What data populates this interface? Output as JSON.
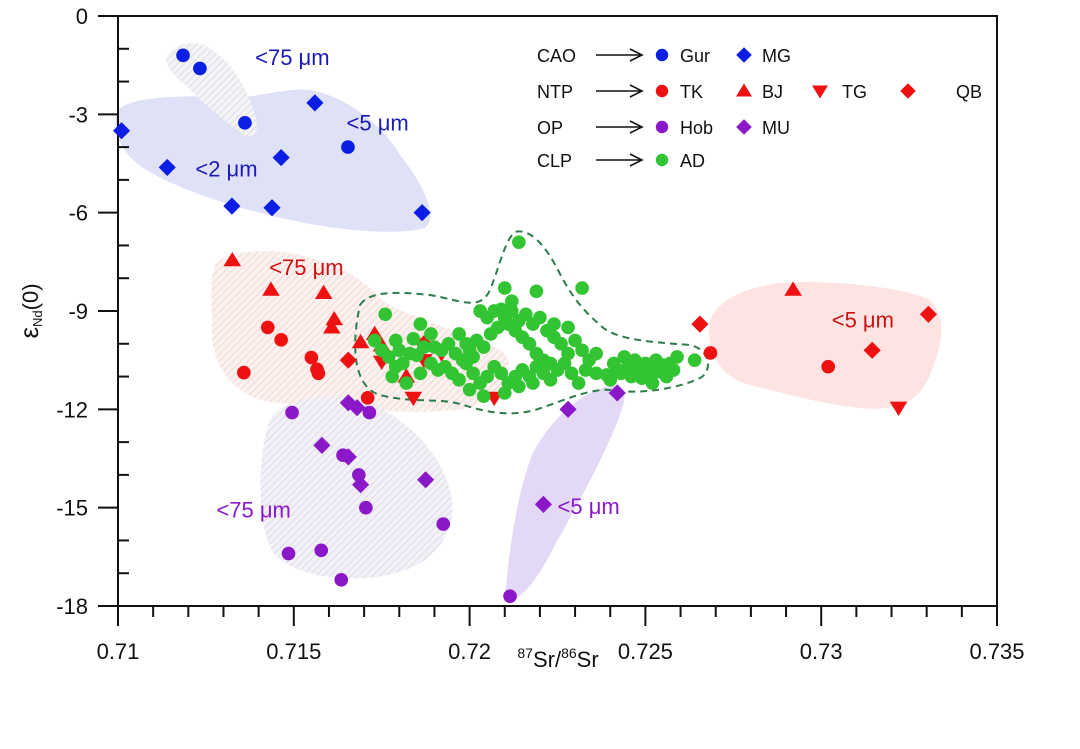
{
  "chart_data": {
    "type": "scatter",
    "title": "",
    "xlabel": {
      "sup1": "87",
      "t1": "Sr/",
      "sup2": "86",
      "t2": "Sr"
    },
    "ylabel": {
      "main": "ε",
      "sub": "Nd",
      "tail": "(0)"
    },
    "xlim": [
      0.71,
      0.735
    ],
    "ylim": [
      -18,
      0
    ],
    "xticks": [
      0.71,
      0.715,
      0.72,
      0.725,
      0.73,
      0.735
    ],
    "xtick_labels": [
      "0.71",
      "0.715",
      "0.72",
      "0.725",
      "0.73",
      "0.735"
    ],
    "x_minor_step": 0.001,
    "yticks": [
      0,
      -3,
      -6,
      -9,
      -12,
      -15,
      -18
    ],
    "ytick_labels": [
      "0",
      "-3",
      "-6",
      "-9",
      "-12",
      "-15",
      "-18"
    ],
    "y_minor_step": 1,
    "grid": false,
    "legend": {
      "placement": "top-right",
      "rows": [
        {
          "group": "CAO",
          "entries": [
            {
              "name": "Gur",
              "marker": "circle",
              "color": "#0a1ee6"
            },
            {
              "name": "MG",
              "marker": "diamond",
              "color": "#0a1ee6"
            }
          ]
        },
        {
          "group": "NTP",
          "entries": [
            {
              "name": "TK",
              "marker": "circle",
              "color": "#ee1111"
            },
            {
              "name": "BJ",
              "marker": "triangle-up",
              "color": "#ee1111"
            },
            {
              "name": "TG",
              "marker": "triangle-down",
              "color": "#ee1111"
            },
            {
              "name": "QB",
              "marker": "diamond",
              "color": "#ee1111"
            }
          ]
        },
        {
          "group": "OP",
          "entries": [
            {
              "name": "Hob",
              "marker": "circle",
              "color": "#8a18c8"
            },
            {
              "name": "MU",
              "marker": "diamond",
              "color": "#8a18c8"
            }
          ]
        },
        {
          "group": "CLP",
          "entries": [
            {
              "name": "AD",
              "marker": "circle",
              "color": "#33c433"
            }
          ]
        }
      ]
    },
    "region_labels": [
      {
        "text": "<75 μm",
        "x": 0.7139,
        "y": -1.5,
        "color": "#1a1ab8"
      },
      {
        "text": "<5 μm",
        "x": 0.7165,
        "y": -3.5,
        "color": "#1a1ab8"
      },
      {
        "text": "<2 μm",
        "x": 0.7122,
        "y": -4.9,
        "color": "#1a1ab8"
      },
      {
        "text": "<75 μm",
        "x": 0.7143,
        "y": -7.9,
        "color": "#cc1111"
      },
      {
        "text": "<5 μm",
        "x": 0.7303,
        "y": -9.5,
        "color": "#cc1111"
      },
      {
        "text": "<75 μm",
        "x": 0.7128,
        "y": -15.3,
        "color": "#8a18c8"
      },
      {
        "text": "<5 μm",
        "x": 0.7225,
        "y": -15.2,
        "color": "#8a18c8"
      }
    ],
    "series": [
      {
        "name": "Gur",
        "group": "CAO",
        "marker": "circle",
        "color": "#0a1ee6",
        "points": [
          [
            0.71185,
            -1.2
          ],
          [
            0.71233,
            -1.6
          ],
          [
            0.71361,
            -3.26
          ],
          [
            0.71654,
            -4.0
          ]
        ]
      },
      {
        "name": "MG",
        "group": "CAO",
        "marker": "diamond",
        "color": "#0a1ee6",
        "points": [
          [
            0.7101,
            -3.5
          ],
          [
            0.7114,
            -4.62
          ],
          [
            0.71324,
            -5.8
          ],
          [
            0.71438,
            -5.85
          ],
          [
            0.71464,
            -4.32
          ],
          [
            0.7156,
            -2.65
          ],
          [
            0.71865,
            -6.0
          ]
        ]
      },
      {
        "name": "TK",
        "group": "NTP",
        "marker": "circle",
        "color": "#ee1111",
        "points": [
          [
            0.71426,
            -9.5
          ],
          [
            0.71464,
            -9.88
          ],
          [
            0.71358,
            -10.88
          ],
          [
            0.7155,
            -10.42
          ],
          [
            0.71566,
            -10.78
          ],
          [
            0.7157,
            -10.9
          ],
          [
            0.7171,
            -11.65
          ],
          [
            0.72685,
            -10.28
          ],
          [
            0.7302,
            -10.7
          ]
        ]
      },
      {
        "name": "BJ",
        "group": "NTP",
        "marker": "triangle-up",
        "color": "#ee1111",
        "points": [
          [
            0.71325,
            -7.45
          ],
          [
            0.71435,
            -8.35
          ],
          [
            0.71585,
            -8.45
          ],
          [
            0.71615,
            -9.25
          ],
          [
            0.71608,
            -9.5
          ],
          [
            0.7169,
            -9.95
          ],
          [
            0.7173,
            -9.7
          ],
          [
            0.7175,
            -10.05
          ],
          [
            0.7182,
            -11.0
          ],
          [
            0.7292,
            -8.35
          ]
        ]
      },
      {
        "name": "TG",
        "group": "NTP",
        "marker": "triangle-down",
        "color": "#ee1111",
        "points": [
          [
            0.7175,
            -10.55
          ],
          [
            0.7184,
            -11.65
          ],
          [
            0.7187,
            -10.5
          ],
          [
            0.7192,
            -10.3
          ],
          [
            0.7207,
            -11.65
          ],
          [
            0.7322,
            -11.95
          ]
        ]
      },
      {
        "name": "QB",
        "group": "NTP",
        "marker": "diamond",
        "color": "#ee1111",
        "points": [
          [
            0.71655,
            -10.5
          ],
          [
            0.7187,
            -10.0
          ],
          [
            0.72655,
            -9.4
          ],
          [
            0.73145,
            -10.2
          ],
          [
            0.73305,
            -9.1
          ]
        ]
      },
      {
        "name": "Hob",
        "group": "OP",
        "marker": "circle",
        "color": "#8a18c8",
        "points": [
          [
            0.71495,
            -12.1
          ],
          [
            0.71715,
            -12.1
          ],
          [
            0.7164,
            -13.4
          ],
          [
            0.71685,
            -14.0
          ],
          [
            0.71705,
            -15.0
          ],
          [
            0.71485,
            -16.4
          ],
          [
            0.71578,
            -16.3
          ],
          [
            0.71635,
            -17.2
          ],
          [
            0.71925,
            -15.5
          ],
          [
            0.72115,
            -17.7
          ]
        ]
      },
      {
        "name": "MU",
        "group": "OP",
        "marker": "diamond",
        "color": "#8a18c8",
        "points": [
          [
            0.71655,
            -11.8
          ],
          [
            0.7168,
            -11.95
          ],
          [
            0.7158,
            -13.1
          ],
          [
            0.71655,
            -13.45
          ],
          [
            0.7169,
            -14.3
          ],
          [
            0.71875,
            -14.15
          ],
          [
            0.7221,
            -14.9
          ],
          [
            0.7228,
            -12.0
          ],
          [
            0.7242,
            -11.5
          ]
        ]
      },
      {
        "name": "AD",
        "group": "CLP",
        "marker": "circle",
        "color": "#33c433",
        "points": [
          [
            0.7214,
            -6.9
          ],
          [
            0.721,
            -8.3
          ],
          [
            0.7219,
            -8.4
          ],
          [
            0.7212,
            -8.7
          ],
          [
            0.7232,
            -8.3
          ],
          [
            0.7228,
            -9.5
          ],
          [
            0.7224,
            -9.4
          ],
          [
            0.7176,
            -9.1
          ],
          [
            0.7186,
            -9.4
          ],
          [
            0.7189,
            -9.7
          ],
          [
            0.7179,
            -9.9
          ],
          [
            0.7184,
            -9.85
          ],
          [
            0.7187,
            -10.1
          ],
          [
            0.7192,
            -10.2
          ],
          [
            0.7173,
            -9.9
          ],
          [
            0.7175,
            -10.2
          ],
          [
            0.7177,
            -10.4
          ],
          [
            0.7179,
            -10.7
          ],
          [
            0.7181,
            -10.6
          ],
          [
            0.7183,
            -10.3
          ],
          [
            0.7186,
            -10.9
          ],
          [
            0.7189,
            -10.6
          ],
          [
            0.7191,
            -10.8
          ],
          [
            0.7193,
            -10.7
          ],
          [
            0.7195,
            -10.9
          ],
          [
            0.7197,
            -11.1
          ],
          [
            0.7199,
            -10.6
          ],
          [
            0.7201,
            -10.9
          ],
          [
            0.7203,
            -11.2
          ],
          [
            0.7205,
            -11.0
          ],
          [
            0.7207,
            -10.7
          ],
          [
            0.7209,
            -10.9
          ],
          [
            0.7211,
            -11.2
          ],
          [
            0.7213,
            -11.0
          ],
          [
            0.7215,
            -10.8
          ],
          [
            0.7217,
            -11.0
          ],
          [
            0.7219,
            -10.7
          ],
          [
            0.7221,
            -10.9
          ],
          [
            0.7223,
            -11.1
          ],
          [
            0.7225,
            -10.8
          ],
          [
            0.7227,
            -10.6
          ],
          [
            0.7229,
            -10.9
          ],
          [
            0.7231,
            -11.2
          ],
          [
            0.7233,
            -10.8
          ],
          [
            0.7196,
            -10.3
          ],
          [
            0.7198,
            -10.5
          ],
          [
            0.72,
            -10.2
          ],
          [
            0.7202,
            -9.9
          ],
          [
            0.7204,
            -10.1
          ],
          [
            0.7206,
            -9.7
          ],
          [
            0.7208,
            -9.5
          ],
          [
            0.721,
            -9.2
          ],
          [
            0.7212,
            -9.0
          ],
          [
            0.7214,
            -9.3
          ],
          [
            0.7216,
            -9.1
          ],
          [
            0.7218,
            -9.4
          ],
          [
            0.722,
            -9.2
          ],
          [
            0.7222,
            -9.6
          ],
          [
            0.7224,
            -9.8
          ],
          [
            0.7226,
            -10.0
          ],
          [
            0.7228,
            -10.3
          ],
          [
            0.723,
            -9.9
          ],
          [
            0.7232,
            -10.2
          ],
          [
            0.7234,
            -10.5
          ],
          [
            0.7236,
            -10.3
          ],
          [
            0.7203,
            -9.0
          ],
          [
            0.7205,
            -9.2
          ],
          [
            0.7207,
            -9.0
          ],
          [
            0.7209,
            -8.95
          ],
          [
            0.7211,
            -9.4
          ],
          [
            0.7213,
            -9.6
          ],
          [
            0.7215,
            -9.8
          ],
          [
            0.7217,
            -10.0
          ],
          [
            0.7219,
            -10.3
          ],
          [
            0.7221,
            -10.5
          ],
          [
            0.7223,
            -10.6
          ],
          [
            0.7197,
            -9.7
          ],
          [
            0.7199,
            -10.0
          ],
          [
            0.7201,
            -10.4
          ],
          [
            0.7194,
            -10.0
          ],
          [
            0.719,
            -10.1
          ],
          [
            0.7185,
            -10.35
          ],
          [
            0.718,
            -10.2
          ],
          [
            0.7178,
            -11.0
          ],
          [
            0.7182,
            -11.2
          ],
          [
            0.72,
            -11.4
          ],
          [
            0.7204,
            -11.6
          ],
          [
            0.721,
            -11.5
          ],
          [
            0.7214,
            -11.3
          ],
          [
            0.7218,
            -11.2
          ],
          [
            0.724,
            -11.1
          ],
          [
            0.7241,
            -10.6
          ],
          [
            0.7243,
            -10.9
          ],
          [
            0.7245,
            -10.7
          ],
          [
            0.7246,
            -11.0
          ],
          [
            0.7247,
            -10.5
          ],
          [
            0.7248,
            -10.8
          ],
          [
            0.7249,
            -11.05
          ],
          [
            0.725,
            -10.6
          ],
          [
            0.7251,
            -10.9
          ],
          [
            0.7252,
            -10.7
          ],
          [
            0.7253,
            -10.5
          ],
          [
            0.7254,
            -10.85
          ],
          [
            0.7255,
            -10.65
          ],
          [
            0.7256,
            -11.0
          ],
          [
            0.7257,
            -10.6
          ],
          [
            0.7258,
            -10.8
          ],
          [
            0.7244,
            -10.4
          ],
          [
            0.7242,
            -10.8
          ],
          [
            0.7239,
            -10.95
          ],
          [
            0.7252,
            -11.2
          ],
          [
            0.7264,
            -10.5
          ],
          [
            0.7259,
            -10.4
          ],
          [
            0.7236,
            -10.9
          ]
        ]
      }
    ]
  }
}
